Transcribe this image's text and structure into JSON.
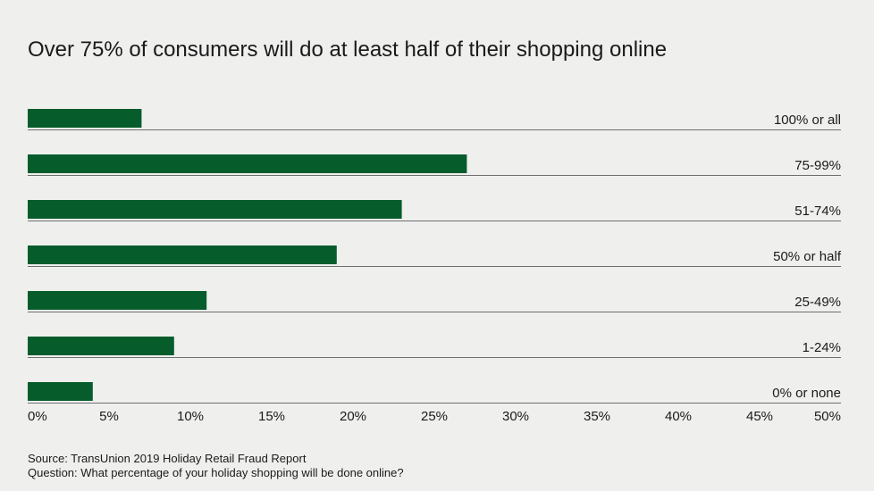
{
  "chart_data": {
    "type": "bar",
    "orientation": "horizontal",
    "title": "Over 75% of consumers will do at least half of their shopping online",
    "categories": [
      "100% or all",
      "75-99%",
      "51-74%",
      "50% or half",
      "25-49%",
      "1-24%",
      "0% or none"
    ],
    "values": [
      7,
      27,
      23,
      19,
      11,
      9,
      4
    ],
    "xlim": [
      0,
      50
    ],
    "x_ticks": [
      0,
      5,
      10,
      15,
      20,
      25,
      30,
      35,
      40,
      45,
      50
    ],
    "x_tick_labels": [
      "0%",
      "5%",
      "10%",
      "15%",
      "20%",
      "25%",
      "30%",
      "35%",
      "40%",
      "45%",
      "50%"
    ],
    "xlabel": "",
    "ylabel": "",
    "grid": false,
    "legend": "none",
    "bar_color": "#075c2b",
    "baseline_color": "#6e6e6e"
  },
  "footer": {
    "source": "Source: TransUnion 2019 Holiday Retail Fraud Report",
    "question": "Question: What percentage of your holiday shopping will be done online?"
  }
}
